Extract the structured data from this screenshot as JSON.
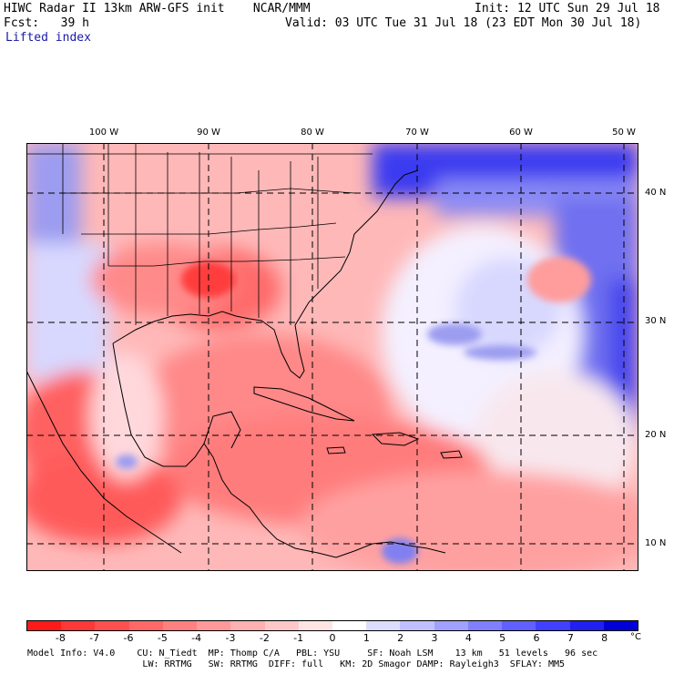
{
  "header": {
    "title": "HIWC Radar II 13km ARW-GFS init    NCAR/MMM",
    "init": "Init: 12 UTC Sun 29 Jul 18",
    "fcst": "Fcst:   39 h",
    "valid": "Valid: 03 UTC Tue 31 Jul 18 (23 EDT Mon 30 Jul 18)",
    "field": "Lifted index"
  },
  "map": {
    "lon_labels": [
      "100 W",
      "90 W",
      "80 W",
      "70 W",
      "60 W",
      "50 W"
    ],
    "lat_labels": [
      "40 N",
      "30 N",
      "20 N",
      "10 N"
    ]
  },
  "colorbar": {
    "labels": [
      "-8",
      "-7",
      "-6",
      "-5",
      "-4",
      "-3",
      "-2",
      "-1",
      "0",
      "1",
      "2",
      "3",
      "4",
      "5",
      "6",
      "7",
      "8"
    ],
    "unit": "°C",
    "colors": [
      "#ff1a1a",
      "#ff3838",
      "#ff5050",
      "#ff6868",
      "#ff8080",
      "#ff9898",
      "#ffb0b0",
      "#ffc8c8",
      "#ffe4e4",
      "#ffffff",
      "#dcdcff",
      "#c0c0ff",
      "#a0a0ff",
      "#8080ff",
      "#6060ff",
      "#4040ff",
      "#2020f0",
      "#0000d8"
    ]
  },
  "footer": {
    "line1": "Model Info: V4.0    CU: N_Tiedt  MP: Thomp C/A   PBL: YSU     SF: Noah LSM    13 km   51 levels   96 sec",
    "line2": "                     LW: RRTMG   SW: RRTMG  DIFF: full   KM: 2D Smagor DAMP: Rayleigh3  SFLAY: MM5"
  }
}
